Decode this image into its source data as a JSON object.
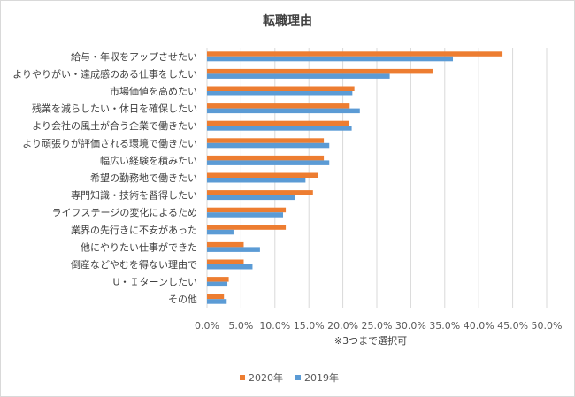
{
  "chart_data": {
    "type": "bar",
    "orientation": "horizontal",
    "title": "転職理由",
    "categories": [
      "給与・年収をアップさせたい",
      "よりやりがい・達成感のある仕事をしたい",
      "市場価値を高めたい",
      "残業を減らしたい・休日を確保したい",
      "より会社の風土が合う企業で働きたい",
      "より頑張りが評価される環境で働きたい",
      "幅広い経験を積みたい",
      "希望の勤務地で働きたい",
      "専門知識・技術を習得したい",
      "ライフステージの変化によるため",
      "業界の先行きに不安があった",
      "他にやりたい仕事ができた",
      "倒産などやむを得ない理由で",
      "U・Ｉターンしたい",
      "その他"
    ],
    "series": [
      {
        "name": "2020年",
        "color": "#ed7d31",
        "values": [
          43.5,
          33.2,
          21.7,
          21.0,
          20.9,
          17.2,
          17.2,
          16.3,
          15.6,
          11.6,
          11.6,
          5.4,
          5.4,
          3.2,
          2.5
        ]
      },
      {
        "name": "2019年",
        "color": "#5b9bd5",
        "values": [
          36.2,
          26.9,
          21.4,
          22.5,
          21.3,
          18.0,
          18.0,
          14.5,
          12.9,
          11.2,
          3.9,
          7.8,
          6.7,
          3.0,
          2.9
        ]
      }
    ],
    "xlim": [
      0,
      50
    ],
    "xticks": [
      "0.0%",
      "5.0%",
      "10.0%",
      "15.0%",
      "20.0%",
      "25.0%",
      "30.0%",
      "35.0%",
      "40.0%",
      "45.0%",
      "50.0%"
    ],
    "note": "※3つまで選択可",
    "grid": true,
    "legend_position": "bottom"
  }
}
